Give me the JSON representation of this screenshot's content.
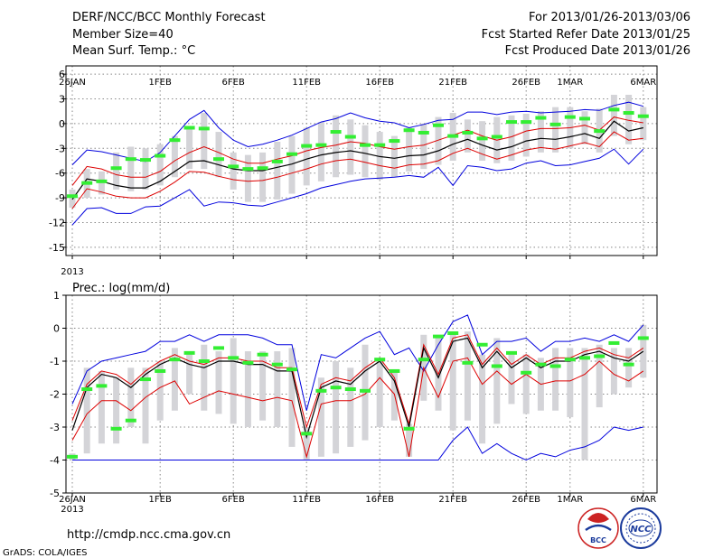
{
  "header": {
    "title": "DERF/NCC/BCC Monthly Forecast",
    "member_size": "Member Size=40",
    "variable": "Mean Surf. Temp.: °C",
    "forecast_period": "For 2013/01/26-2013/03/06",
    "refer_date": "Fcst Started Refer Date 2013/01/25",
    "produced_date": "Fcst Produced Date 2013/01/26"
  },
  "footer": {
    "url": "http://cmdp.ncc.cma.gov.cn",
    "grads": "GrADS: COLA/IGES",
    "logo_bcc": "BCC",
    "logo_ncc": "NCC"
  },
  "colors": {
    "envelope": "#0000dd",
    "spread": "#dd0000",
    "mean": "#000000",
    "bar": "#d4d4d8",
    "marker": "#33ee33",
    "grid": "#888888"
  },
  "chart_data": [
    {
      "type": "line",
      "title": "",
      "ylabel": "Mean Surf. Temp.: °C",
      "ylim": [
        -16,
        7
      ],
      "yticks": [
        6,
        3,
        0,
        -3,
        -6,
        -9,
        -12,
        -15
      ],
      "x_start_label": "26JAN",
      "x_year_label": "2013",
      "xticks": [
        {
          "day": 0,
          "label": "26JAN"
        },
        {
          "day": 6,
          "label": "1FEB"
        },
        {
          "day": 11,
          "label": "6FEB"
        },
        {
          "day": 16,
          "label": "11FEB"
        },
        {
          "day": 21,
          "label": "16FEB"
        },
        {
          "day": 26,
          "label": "21FEB"
        },
        {
          "day": 31,
          "label": "26FEB"
        },
        {
          "day": 34,
          "label": "1MAR"
        },
        {
          "day": 39,
          "label": "6MAR"
        }
      ],
      "series": [
        {
          "name": "max",
          "values": [
            -5,
            -3.2,
            -3.4,
            -3.8,
            -4.2,
            -4.6,
            -3.5,
            -1.5,
            0.5,
            1.6,
            -0.5,
            -2,
            -2.8,
            -2.5,
            -2,
            -1.4,
            -0.6,
            0.2,
            0.6,
            1.3,
            0.7,
            0.3,
            0.1,
            -0.5,
            -0.1,
            0.4,
            0.5,
            1.4,
            1.4,
            1.1,
            1.4,
            1.5,
            1.3,
            1.4,
            1.5,
            1.7,
            1.6,
            2.2,
            2.6,
            2.1
          ]
        },
        {
          "name": "upper",
          "values": [
            -7.5,
            -5.2,
            -5.5,
            -6.2,
            -6.5,
            -6.5,
            -5.8,
            -4.5,
            -3.5,
            -2.8,
            -3.5,
            -4.3,
            -4.8,
            -4.8,
            -4.3,
            -3.9,
            -3.3,
            -2.9,
            -2.6,
            -2.2,
            -2.4,
            -2.8,
            -3.1,
            -2.8,
            -2.6,
            -2.0,
            -1.4,
            -0.8,
            -1.5,
            -2.0,
            -1.6,
            -0.9,
            -0.6,
            -0.6,
            -0.5,
            -0.2,
            -0.8,
            0.8,
            0.4,
            0.1
          ]
        },
        {
          "name": "mean",
          "values": [
            -9.2,
            -6.7,
            -7.0,
            -7.5,
            -7.8,
            -7.8,
            -7.0,
            -5.8,
            -4.6,
            -4.5,
            -5.0,
            -5.5,
            -5.7,
            -5.7,
            -5.3,
            -4.9,
            -4.3,
            -3.8,
            -3.5,
            -3.3,
            -3.6,
            -4.0,
            -4.2,
            -3.9,
            -3.8,
            -3.3,
            -2.5,
            -1.9,
            -2.6,
            -3.2,
            -2.8,
            -2.1,
            -1.8,
            -1.9,
            -1.6,
            -1.2,
            -1.8,
            0.3,
            -0.9,
            -0.5
          ]
        },
        {
          "name": "lower",
          "values": [
            -10.3,
            -7.9,
            -8.3,
            -8.8,
            -9.0,
            -9.0,
            -8.2,
            -7.1,
            -5.8,
            -5.9,
            -6.4,
            -6.8,
            -7.0,
            -6.9,
            -6.5,
            -6.0,
            -5.5,
            -4.9,
            -4.5,
            -4.3,
            -4.7,
            -5.1,
            -5.4,
            -5.0,
            -4.9,
            -4.5,
            -3.6,
            -3.0,
            -3.7,
            -4.3,
            -3.8,
            -3.2,
            -2.9,
            -3.1,
            -2.7,
            -2.3,
            -2.8,
            -1.0,
            -2.0,
            -1.8
          ]
        },
        {
          "name": "min",
          "values": [
            -12.3,
            -10.3,
            -10.2,
            -10.9,
            -10.9,
            -10.1,
            -10.0,
            -9.0,
            -8.0,
            -10.0,
            -9.5,
            -9.6,
            -9.9,
            -10.0,
            -9.5,
            -9.0,
            -8.5,
            -7.8,
            -7.4,
            -7.0,
            -6.7,
            -6.6,
            -6.5,
            -6.3,
            -6.5,
            -5.3,
            -7.5,
            -5.1,
            -5.3,
            -5.7,
            -5.5,
            -4.8,
            -4.5,
            -5.1,
            -5.0,
            -4.6,
            -4.2,
            -3.1,
            -4.9,
            -3.1
          ]
        }
      ],
      "bars": {
        "low": [
          -10.2,
          -9.0,
          -8.6,
          -8.0,
          -8.2,
          -8.0,
          -7.5,
          -6.5,
          -5.5,
          -5.5,
          -6.5,
          -8.0,
          -9.5,
          -9.5,
          -9.2,
          -8.5,
          -7.5,
          -7.0,
          -6.5,
          -6.2,
          -6.5,
          -6.8,
          -6.5,
          -5.8,
          -5.5,
          -5.0,
          -4.5,
          -3.5,
          -4.5,
          -4.8,
          -4.5,
          -4.0,
          -3.5,
          -3.5,
          -3.0,
          -2.5,
          -3.5,
          -1.5,
          -2.5,
          -2.0
        ],
        "high": [
          -8.0,
          -5.5,
          -5.8,
          -3.5,
          -2.8,
          -3.0,
          -2.5,
          -1.5,
          -0.5,
          1.3,
          -1.0,
          -3.5,
          -3.8,
          -3.5,
          -2.2,
          -1.5,
          -0.5,
          0.2,
          1.0,
          0.5,
          -0.2,
          -1.0,
          -1.5,
          -0.5,
          0.0,
          0.8,
          1.3,
          0.5,
          0.3,
          0.8,
          1.0,
          1.2,
          1.5,
          2.0,
          2.0,
          1.5,
          1.8,
          3.5,
          3.5,
          2.0
        ]
      },
      "markers": [
        -8.8,
        -7.2,
        -7.0,
        -5.4,
        -4.3,
        -4.4,
        -3.9,
        -2.0,
        -0.5,
        -0.6,
        -4.3,
        -5.2,
        -5.5,
        -5.4,
        -4.6,
        -3.7,
        -2.7,
        -2.6,
        -1.0,
        -1.6,
        -2.6,
        -2.6,
        -2.1,
        -0.8,
        -1.1,
        -0.2,
        -1.5,
        -1.1,
        -1.8,
        -1.6,
        0.2,
        0.2,
        0.7,
        -0.1,
        0.8,
        0.6,
        -0.9,
        1.7,
        1.3,
        0.9
      ]
    },
    {
      "type": "line",
      "title": "Prec.: log(mm/d)",
      "ylabel": "Prec.: log(mm/d)",
      "ylim": [
        -5,
        1
      ],
      "yticks": [
        1,
        0,
        -1,
        -2,
        -3,
        -4,
        -5
      ],
      "x_start_label": "26JAN",
      "x_year_label": "2013",
      "xticks": [
        {
          "day": 0,
          "label": "26JAN"
        },
        {
          "day": 6,
          "label": "1FEB"
        },
        {
          "day": 11,
          "label": "6FEB"
        },
        {
          "day": 16,
          "label": "11FEB"
        },
        {
          "day": 21,
          "label": "16FEB"
        },
        {
          "day": 26,
          "label": "21FEB"
        },
        {
          "day": 31,
          "label": "26FEB"
        },
        {
          "day": 34,
          "label": "1MAR"
        },
        {
          "day": 39,
          "label": "6MAR"
        }
      ],
      "series": [
        {
          "name": "max",
          "values": [
            -2.3,
            -1.3,
            -1.0,
            -0.9,
            -0.8,
            -0.7,
            -0.4,
            -0.4,
            -0.2,
            -0.4,
            -0.2,
            -0.2,
            -0.2,
            -0.3,
            -0.5,
            -0.5,
            -2.5,
            -0.8,
            -0.9,
            -0.6,
            -0.3,
            -0.1,
            -0.8,
            -0.6,
            -1.3,
            -0.5,
            0.2,
            0.4,
            -0.8,
            -0.4,
            -0.4,
            -0.3,
            -0.7,
            -0.4,
            -0.4,
            -0.3,
            -0.4,
            -0.2,
            -0.4,
            0.1
          ]
        },
        {
          "name": "upper",
          "values": [
            -2.8,
            -1.7,
            -1.3,
            -1.4,
            -1.7,
            -1.3,
            -1.0,
            -0.8,
            -1.0,
            -1.1,
            -0.9,
            -0.9,
            -1.0,
            -1.0,
            -1.2,
            -1.2,
            -3.0,
            -1.7,
            -1.5,
            -1.6,
            -1.2,
            -0.9,
            -1.5,
            -2.9,
            -0.5,
            -1.4,
            -0.3,
            -0.2,
            -1.1,
            -0.6,
            -1.1,
            -0.8,
            -1.1,
            -0.9,
            -0.9,
            -0.7,
            -0.6,
            -0.8,
            -0.9,
            -0.6
          ]
        },
        {
          "name": "mean",
          "values": [
            -3.1,
            -1.8,
            -1.4,
            -1.5,
            -1.8,
            -1.4,
            -1.1,
            -0.9,
            -1.1,
            -1.2,
            -1.0,
            -1.0,
            -1.1,
            -1.1,
            -1.3,
            -1.3,
            -3.3,
            -1.8,
            -1.6,
            -1.7,
            -1.3,
            -1.0,
            -1.6,
            -3.0,
            -0.6,
            -1.5,
            -0.4,
            -0.3,
            -1.2,
            -0.7,
            -1.2,
            -0.9,
            -1.2,
            -1.0,
            -1.0,
            -0.8,
            -0.7,
            -0.9,
            -1.0,
            -0.7
          ]
        },
        {
          "name": "lower",
          "values": [
            -3.4,
            -2.6,
            -2.2,
            -2.2,
            -2.5,
            -2.1,
            -1.8,
            -1.6,
            -2.3,
            -2.1,
            -1.9,
            -2.0,
            -2.1,
            -2.2,
            -2.1,
            -2.2,
            -3.9,
            -2.3,
            -2.2,
            -2.2,
            -2.0,
            -1.5,
            -2.0,
            -3.9,
            -1.2,
            -2.1,
            -1.0,
            -0.9,
            -1.7,
            -1.3,
            -1.7,
            -1.4,
            -1.7,
            -1.6,
            -1.6,
            -1.4,
            -1.0,
            -1.4,
            -1.6,
            -1.3
          ]
        },
        {
          "name": "min",
          "values": [
            -4,
            -4,
            -4,
            -4,
            -4,
            -4,
            -4,
            -4,
            -4,
            -4,
            -4,
            -4,
            -4,
            -4,
            -4,
            -4,
            -4,
            -4,
            -4,
            -4,
            -4,
            -4,
            -4,
            -4,
            -4,
            -4,
            -3.4,
            -3.0,
            -3.8,
            -3.5,
            -3.8,
            -4.0,
            -3.8,
            -3.9,
            -3.7,
            -3.6,
            -3.4,
            -3.0,
            -3.1,
            -3.0
          ]
        }
      ],
      "bars": {
        "low": [
          -4.0,
          -3.8,
          -3.5,
          -3.5,
          -3.0,
          -3.5,
          -2.8,
          -2.5,
          -2.0,
          -2.5,
          -2.6,
          -2.9,
          -3.0,
          -2.8,
          -3.0,
          -3.6,
          -4.0,
          -3.9,
          -3.8,
          -3.6,
          -3.4,
          -3.0,
          -2.8,
          -3.9,
          -2.2,
          -2.5,
          -3.1,
          -2.8,
          -3.5,
          -2.9,
          -2.3,
          -2.6,
          -2.5,
          -2.5,
          -2.7,
          -4.0,
          -2.4,
          -2.0,
          -1.8,
          -1.5
        ],
        "high": [
          -3.8,
          -1.2,
          -1.3,
          -1.5,
          -1.2,
          -1.2,
          -1.0,
          -0.6,
          -0.7,
          -0.5,
          -0.7,
          -0.3,
          -0.7,
          -0.7,
          -0.7,
          -0.6,
          -3.0,
          -1.5,
          -1.0,
          -1.2,
          -0.5,
          -1.0,
          -1.3,
          -2.9,
          -0.2,
          -0.2,
          -0.1,
          -0.1,
          -0.8,
          -0.3,
          -0.8,
          -0.8,
          -0.9,
          -0.6,
          -0.6,
          -0.6,
          -0.5,
          -0.6,
          -0.6,
          0.1
        ]
      },
      "markers": [
        -3.9,
        -1.85,
        -1.75,
        -3.05,
        -2.8,
        -1.55,
        -1.3,
        -0.95,
        -0.75,
        -1.0,
        -0.6,
        -0.9,
        -1.05,
        -0.8,
        -1.1,
        -1.25,
        -3.2,
        -1.9,
        -1.8,
        -1.85,
        -1.9,
        -0.95,
        -1.3,
        -3.05,
        -0.95,
        -0.25,
        -0.15,
        -1.05,
        -0.5,
        -1.15,
        -0.75,
        -1.35,
        -1.1,
        -1.15,
        -0.95,
        -0.9,
        -0.85,
        -0.45,
        -1.1,
        -0.3
      ]
    }
  ]
}
